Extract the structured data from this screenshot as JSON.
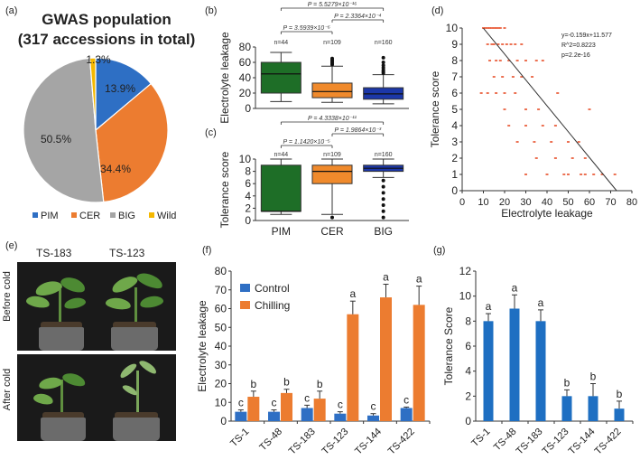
{
  "panels": {
    "a": {
      "label": "(a)"
    },
    "b": {
      "label": "(b)"
    },
    "c": {
      "label": "(c)"
    },
    "d": {
      "label": "(d)"
    },
    "e": {
      "label": "(e)"
    },
    "f": {
      "label": "(f)"
    },
    "g": {
      "label": "(g)"
    }
  },
  "photos": {
    "columns": [
      "TS-183",
      "TS-123"
    ],
    "rows": [
      "Before cold",
      "After cold"
    ]
  },
  "chart_data": [
    {
      "id": "a",
      "type": "pie",
      "title": "GWAS population",
      "subtitle": "(317 accessions in total)",
      "labels": [
        "PIM",
        "CER",
        "BIG",
        "Wild"
      ],
      "values": [
        13.9,
        34.4,
        50.5,
        1.3
      ],
      "value_labels": [
        "13.9%",
        "34.4%",
        "50.5%",
        "1.3%"
      ],
      "colors": [
        "#2e6fc4",
        "#ec7c30",
        "#a5a5a5",
        "#f5b800"
      ],
      "legend": "bottom"
    },
    {
      "id": "b",
      "type": "box",
      "ylabel": "Electrolyte leakage",
      "ylim": [
        0,
        80
      ],
      "yticks": [
        0,
        20,
        40,
        60,
        80
      ],
      "groups": [
        {
          "name": "PIM",
          "n": "n=44",
          "color": "#1e6e27",
          "min": 9,
          "q1": 20,
          "median": 45,
          "q3": 60,
          "max": 73
        },
        {
          "name": "CER",
          "n": "n=109",
          "color": "#f08a2c",
          "min": 8,
          "q1": 14,
          "median": 22,
          "q3": 33,
          "max": 55,
          "outliers": [
            57,
            59,
            61,
            63,
            65
          ]
        },
        {
          "name": "BIG",
          "n": "n=160",
          "color": "#1c37a8",
          "min": 6,
          "q1": 12,
          "median": 19,
          "q3": 27,
          "max": 44,
          "outliers": [
            46,
            48,
            50,
            53,
            56,
            60,
            66
          ]
        }
      ],
      "pvalues": [
        {
          "text": "P = 5.5279×10⁻¹⁶",
          "from": "PIM",
          "to": "BIG"
        },
        {
          "text": "P = 2.3364×10⁻⁴",
          "from": "CER",
          "to": "BIG"
        },
        {
          "text": "P = 3.5939×10⁻⁶",
          "from": "PIM",
          "to": "CER"
        }
      ]
    },
    {
      "id": "c",
      "type": "box",
      "ylabel": "Tolerance score",
      "xlabel_categories": [
        "PIM",
        "CER",
        "BIG"
      ],
      "ylim": [
        0,
        10
      ],
      "yticks": [
        0,
        2,
        4,
        6,
        8,
        10
      ],
      "groups": [
        {
          "name": "PIM",
          "n": "n=44",
          "color": "#1e6e27",
          "min": 1,
          "q1": 1.5,
          "median": 1.5,
          "q3": 9,
          "max": 10
        },
        {
          "name": "CER",
          "n": "n=109",
          "color": "#f08a2c",
          "min": 1,
          "q1": 6,
          "median": 8,
          "q3": 9,
          "max": 10,
          "outliers": [
            0.5
          ]
        },
        {
          "name": "BIG",
          "n": "n=160",
          "color": "#1c37a8",
          "min": 7,
          "q1": 8,
          "median": 8.5,
          "q3": 9,
          "max": 10,
          "outliers": [
            0.5,
            1.5,
            2.5,
            3.5,
            4.5,
            5.5,
            6.5
          ]
        }
      ],
      "pvalues": [
        {
          "text": "P = 4.3338×10⁻¹¹",
          "from": "PIM",
          "to": "BIG"
        },
        {
          "text": "P = 1.9864×10⁻³",
          "from": "CER",
          "to": "BIG"
        },
        {
          "text": "P = 1.1420×10⁻⁵",
          "from": "PIM",
          "to": "CER"
        }
      ]
    },
    {
      "id": "d",
      "type": "scatter",
      "xlabel": "Electrolyte leakage",
      "ylabel": "Tolerance score",
      "xlim": [
        0,
        80
      ],
      "ylim": [
        0,
        10
      ],
      "xticks": [
        0,
        10,
        20,
        30,
        40,
        50,
        60,
        70,
        80
      ],
      "yticks": [
        0,
        1,
        2,
        3,
        4,
        5,
        6,
        7,
        8,
        9,
        10
      ],
      "annotations": [
        "y=-0.159x+11.577",
        "R^2=0.8223",
        "p=2.2e-16"
      ],
      "fit": {
        "slope": -0.159,
        "intercept": 11.577
      },
      "x": [
        10,
        11,
        12,
        13,
        14,
        15,
        16,
        17,
        18,
        20,
        12,
        14,
        15,
        17,
        19,
        21,
        23,
        25,
        28,
        13,
        16,
        18,
        22,
        26,
        30,
        35,
        38,
        15,
        19,
        24,
        28,
        33,
        9,
        12,
        16,
        20,
        25,
        30,
        36,
        22,
        30,
        38,
        44,
        26,
        34,
        42,
        50,
        35,
        44,
        52,
        58,
        40,
        48,
        56,
        62,
        50,
        58,
        66,
        72,
        30,
        45,
        60,
        20,
        55
      ],
      "y": [
        10,
        10,
        10,
        10,
        10,
        10,
        10,
        10,
        10,
        10,
        9,
        9,
        9,
        9,
        9,
        9,
        9,
        9,
        9,
        8,
        8,
        8,
        8,
        8,
        8,
        8,
        8,
        7,
        7,
        7,
        7,
        7,
        6,
        6,
        6,
        6,
        6,
        5,
        5,
        4,
        4,
        4,
        4,
        3,
        3,
        3,
        3,
        2,
        2,
        2,
        2,
        1,
        1,
        1,
        1,
        1,
        1,
        1,
        1,
        1,
        6,
        5,
        5,
        3
      ],
      "point_color": "#e8502a"
    },
    {
      "id": "f",
      "type": "bar",
      "ylabel": "Electrolyte leakage",
      "categories": [
        "TS-1",
        "TS-48",
        "TS-183",
        "TS-123",
        "TS-144",
        "TS-422"
      ],
      "series": [
        {
          "name": "Control",
          "color": "#2e6fc4",
          "values": [
            5,
            5,
            7,
            4,
            3,
            7
          ],
          "errors": [
            1,
            1,
            1.5,
            1,
            1,
            0.5
          ],
          "labels": [
            "c",
            "c",
            "c",
            "c",
            "c",
            "c"
          ]
        },
        {
          "name": "Chilling",
          "color": "#ec7c30",
          "values": [
            13,
            15,
            12,
            57,
            66,
            62
          ],
          "errors": [
            3,
            2,
            4,
            7,
            7,
            10
          ],
          "labels": [
            "b",
            "b",
            "b",
            "a",
            "a",
            "a"
          ]
        }
      ],
      "ylim": [
        0,
        80
      ],
      "yticks": [
        0,
        10,
        20,
        30,
        40,
        50,
        60,
        70,
        80
      ],
      "legend": "top-left"
    },
    {
      "id": "g",
      "type": "bar",
      "ylabel": "Tolerance Score",
      "categories": [
        "TS-1",
        "TS-48",
        "TS-183",
        "TS-123",
        "TS-144",
        "TS-422"
      ],
      "series": [
        {
          "name": "Tolerance Score",
          "color": "#1e6fc2",
          "values": [
            8,
            9,
            8,
            2,
            2,
            1
          ],
          "errors": [
            0.6,
            1.1,
            0.9,
            0.5,
            1.0,
            0.6
          ],
          "labels": [
            "a",
            "a",
            "a",
            "b",
            "b",
            "b"
          ]
        }
      ],
      "ylim": [
        0,
        12
      ],
      "yticks": [
        0,
        2,
        4,
        6,
        8,
        10,
        12
      ]
    }
  ]
}
